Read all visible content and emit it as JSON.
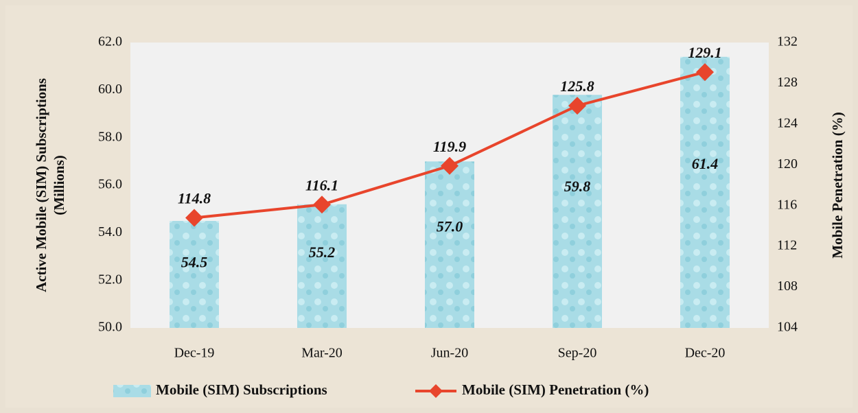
{
  "chart_data": {
    "type": "combo",
    "categories": [
      "Dec-19",
      "Mar-20",
      "Jun-20",
      "Sep-20",
      "Dec-20"
    ],
    "y_label": [
      "Active Mobile (SIM) Subscriptions",
      "(Millions)"
    ],
    "y2_label": "Mobile Penetration (%)",
    "ylim": [
      50,
      62
    ],
    "yticks": [
      {
        "value": 50,
        "label": "50.0"
      },
      {
        "value": 52,
        "label": "52.0"
      },
      {
        "value": 54,
        "label": "54.0"
      },
      {
        "value": 56,
        "label": "56.0"
      },
      {
        "value": 58,
        "label": "58.0"
      },
      {
        "value": 60,
        "label": "60.0"
      },
      {
        "value": 62,
        "label": "62.0"
      }
    ],
    "y2lim": [
      104,
      132
    ],
    "y2ticks": [
      104,
      108,
      112,
      116,
      120,
      124,
      128,
      132
    ],
    "grid": false,
    "legend": "bottom",
    "series": [
      {
        "name": "Mobile (SIM) Subscriptions",
        "type": "bar",
        "color": "#a9dce6",
        "values": [
          54.5,
          55.2,
          57.0,
          59.8,
          61.4
        ],
        "value_labels": [
          "54.5",
          "55.2",
          "57.0",
          "59.8",
          "61.4"
        ]
      },
      {
        "name": "Mobile (SIM) Penetration (%)",
        "type": "line",
        "axis": "y2",
        "color": "#e8452c",
        "values": [
          114.8,
          116.1,
          119.9,
          125.8,
          129.1
        ]
      }
    ]
  }
}
